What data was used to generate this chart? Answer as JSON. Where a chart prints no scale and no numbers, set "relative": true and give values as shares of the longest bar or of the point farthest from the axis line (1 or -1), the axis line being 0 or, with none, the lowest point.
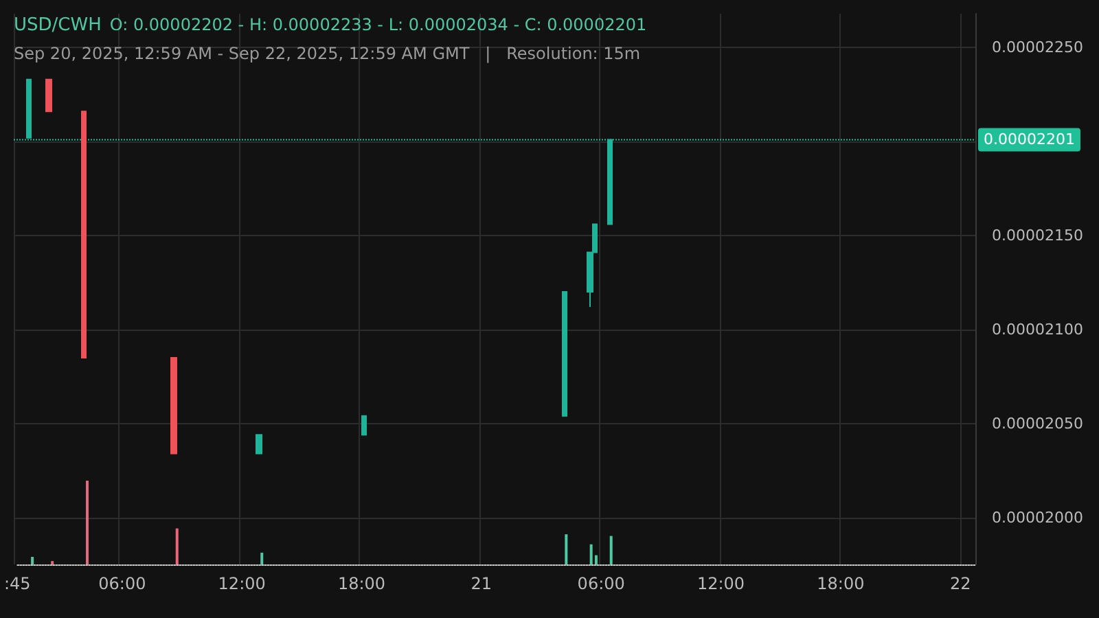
{
  "chart_data": [
    {
      "type": "candlestick",
      "title": "USD/CWH",
      "subtitle": "Sep 20, 2025, 12:59 AM - Sep 22, 2025, 12:59 AM GMT   |   Resolution: 15m",
      "annotations": [
        "O: 0.00002202 - H: 0.00002233 - L: 0.00002034 - C: 0.00002201"
      ],
      "x": [
        "2025-09-20T01:30",
        "2025-09-20T02:30",
        "2025-09-20T04:15",
        "2025-09-20T08:45",
        "2025-09-20T13:00",
        "2025-09-20T18:15",
        "2025-09-21T04:15",
        "2025-09-21T05:30",
        "2025-09-21T05:45",
        "2025-09-21T06:30"
      ],
      "ohlc": [
        [
          2.202e-05,
          2.233e-05,
          2.202e-05,
          2.233e-05
        ],
        [
          2.233e-05,
          2.233e-05,
          2.216e-05,
          2.216e-05
        ],
        [
          2.216e-05,
          2.216e-05,
          2.085e-05,
          2.085e-05
        ],
        [
          2.085e-05,
          2.085e-05,
          2.034e-05,
          2.034e-05
        ],
        [
          2.034e-05,
          2.044e-05,
          2.034e-05,
          2.044e-05
        ],
        [
          2.044e-05,
          2.054e-05,
          2.044e-05,
          2.054e-05
        ],
        [
          2.054e-05,
          2.12e-05,
          2.054e-05,
          2.12e-05
        ],
        [
          2.12e-05,
          2.141e-05,
          2.112e-05,
          2.141e-05
        ],
        [
          2.141e-05,
          2.156e-05,
          2.141e-05,
          2.156e-05
        ],
        [
          2.156e-05,
          2.201e-05,
          2.156e-05,
          2.201e-05
        ]
      ],
      "colors": [
        "#1fb39a",
        "#f0525a",
        "#f0525a",
        "#f0525a",
        "#1fb39a",
        "#1fb39a",
        "#1fb39a",
        "#1fb39a",
        "#1fb39a",
        "#1fb39a"
      ],
      "xlim": [
        "2025-09-20T00:45",
        "2025-09-22T00:45"
      ],
      "xticks": [
        {
          "value": "2025-09-20T00:45",
          "label": null
        },
        {
          "value": "2025-09-20T06:00",
          "label": null
        },
        {
          "value": "2025-09-20T12:00",
          "label": null
        },
        {
          "value": "2025-09-20T18:00",
          "label": null
        },
        {
          "value": "2025-09-21T00:00",
          "label": null
        },
        {
          "value": "2025-09-21T06:00",
          "label": null
        },
        {
          "value": "2025-09-21T12:00",
          "label": null
        },
        {
          "value": "2025-09-21T18:00",
          "label": null
        },
        {
          "value": "2025-09-22T00:00",
          "label": null
        }
      ],
      "ylim": [
        1.975e-05,
        2.268e-05
      ],
      "yticks": [
        {
          "value": 2e-05,
          "label": "0.00002000"
        },
        {
          "value": 2.05e-05,
          "label": "0.00002050"
        },
        {
          "value": 2.1e-05,
          "label": "0.00002100"
        },
        {
          "value": 2.15e-05,
          "label": "0.00002150"
        },
        {
          "value": 2.2e-05,
          "label": null
        },
        {
          "value": 2.25e-05,
          "label": "0.00002250"
        }
      ],
      "ref_lines": [
        {
          "axis": "y",
          "value": 2.201e-05,
          "label": "0.00002201",
          "color": "#1fbf98",
          "line_style": "dotted"
        }
      ],
      "grid": true,
      "tick_labels": "y"
    },
    {
      "type": "bar",
      "relative": true,
      "x": [
        "2025-09-20T01:30",
        "2025-09-20T02:30",
        "2025-09-20T04:15",
        "2025-09-20T08:45",
        "2025-09-20T13:00",
        "2025-09-20T18:15",
        "2025-09-21T04:15",
        "2025-09-21T05:30",
        "2025-09-21T05:45",
        "2025-09-21T06:30"
      ],
      "values": [
        0.09,
        0.04,
        1,
        0.43,
        0.14,
        null,
        0.36,
        0.24,
        0.11,
        0.34
      ],
      "colors": [
        "#4fc9a4",
        "#e8677a",
        "#e8677a",
        "#e8677a",
        "#4fc9a4",
        "#4fc9a4",
        "#4fc9a4",
        "#4fc9a4",
        "#4fc9a4",
        "#4fc9a4"
      ],
      "xlim": [
        "2025-09-20T00:45",
        "2025-09-22T00:45"
      ],
      "xticks": [
        {
          "value": "2025-09-20T00:45",
          "label": ":45"
        },
        {
          "value": "2025-09-20T06:00",
          "label": "06:00"
        },
        {
          "value": "2025-09-20T12:00",
          "label": "12:00"
        },
        {
          "value": "2025-09-20T18:00",
          "label": "18:00"
        },
        {
          "value": "2025-09-21T00:00",
          "label": "21"
        },
        {
          "value": "2025-09-21T06:00",
          "label": "06:00"
        },
        {
          "value": "2025-09-21T12:00",
          "label": "12:00"
        },
        {
          "value": "2025-09-21T18:00",
          "label": "18:00"
        },
        {
          "value": "2025-09-22T00:00",
          "label": "22"
        }
      ],
      "tick_labels": "x"
    }
  ]
}
